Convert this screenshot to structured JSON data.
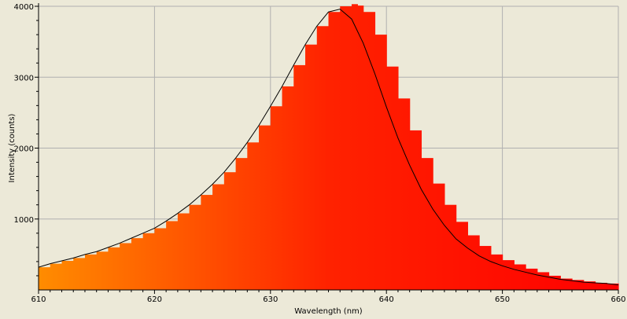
{
  "chart_data": {
    "type": "area",
    "title": "",
    "xlabel": "Wavelength (nm)",
    "ylabel": "Intensity (counts)",
    "xlim": [
      610,
      660
    ],
    "ylim": [
      0,
      4000
    ],
    "x_ticks": [
      610,
      620,
      630,
      640,
      650,
      660
    ],
    "y_ticks": [
      1000,
      2000,
      3000,
      4000
    ],
    "grid": true,
    "legend": "none",
    "colors": {
      "background": "#ece9d8",
      "grid": "#b0b0b0",
      "axis": "#000000",
      "gradient_start": "#ff8c00",
      "gradient_mid": "#ff2200",
      "gradient_end": "#ff0000",
      "fit_line": "#000000"
    },
    "series": [
      {
        "kind": "histogram",
        "x": [
          610,
          611,
          612,
          613,
          614,
          615,
          616,
          617,
          618,
          619,
          620,
          621,
          622,
          623,
          624,
          625,
          626,
          627,
          628,
          629,
          630,
          631,
          632,
          633,
          634,
          635,
          636,
          637,
          637.5,
          638,
          639,
          640,
          641,
          642,
          643,
          644,
          645,
          646,
          647,
          648,
          649,
          650,
          651,
          652,
          653,
          654,
          655,
          656,
          657,
          658,
          659,
          660
        ],
        "values": [
          320,
          370,
          410,
          450,
          500,
          540,
          600,
          660,
          730,
          800,
          870,
          970,
          1080,
          1200,
          1340,
          1490,
          1660,
          1860,
          2080,
          2320,
          2590,
          2870,
          3170,
          3460,
          3720,
          3920,
          4000,
          4030,
          4010,
          3920,
          3600,
          3150,
          2700,
          2250,
          1860,
          1500,
          1200,
          960,
          770,
          620,
          500,
          420,
          360,
          300,
          250,
          200,
          160,
          140,
          120,
          100,
          90,
          70
        ]
      },
      {
        "kind": "line",
        "x": [
          610,
          611,
          612,
          613,
          614,
          615,
          616,
          617,
          618,
          619,
          620,
          621,
          622,
          623,
          624,
          625,
          626,
          627,
          628,
          629,
          630,
          631,
          632,
          633,
          634,
          635,
          636,
          637,
          638,
          639,
          640,
          641,
          642,
          643,
          644,
          645,
          646,
          647,
          648,
          649,
          650,
          651,
          652,
          653,
          654,
          655,
          656,
          657,
          658,
          659,
          660
        ],
        "values": [
          320,
          370,
          410,
          450,
          500,
          540,
          600,
          660,
          730,
          800,
          870,
          970,
          1080,
          1200,
          1340,
          1490,
          1660,
          1860,
          2080,
          2320,
          2590,
          2870,
          3170,
          3460,
          3720,
          3920,
          3960,
          3820,
          3480,
          3050,
          2580,
          2140,
          1760,
          1420,
          1140,
          910,
          720,
          590,
          480,
          400,
          340,
          290,
          250,
          210,
          180,
          150,
          130,
          110,
          100,
          90,
          70
        ]
      }
    ]
  }
}
